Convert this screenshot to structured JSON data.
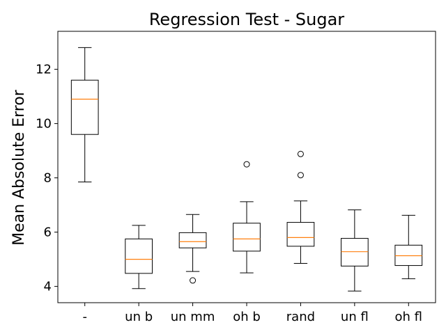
{
  "chart_data": {
    "type": "box",
    "title": "Regression Test - Sugar",
    "xlabel": "",
    "ylabel": "Mean Absolute Error",
    "ylim": [
      3.4,
      13.4
    ],
    "yticks": [
      4,
      6,
      8,
      10,
      12
    ],
    "grid": false,
    "categories": [
      "-",
      "un b",
      "un mm",
      "oh b",
      "rand",
      "un fl",
      "oh fl"
    ],
    "boxes": [
      {
        "category": "-",
        "whisker_low": 7.85,
        "q1": 9.6,
        "median": 10.9,
        "q3": 11.6,
        "whisker_high": 12.8,
        "outliers": []
      },
      {
        "category": "un b",
        "whisker_low": 3.92,
        "q1": 4.48,
        "median": 5.0,
        "q3": 5.75,
        "whisker_high": 6.25,
        "outliers": []
      },
      {
        "category": "un mm",
        "whisker_low": 4.55,
        "q1": 5.42,
        "median": 5.65,
        "q3": 5.98,
        "whisker_high": 6.65,
        "outliers": [
          4.22
        ]
      },
      {
        "category": "oh b",
        "whisker_low": 4.5,
        "q1": 5.3,
        "median": 5.75,
        "q3": 6.33,
        "whisker_high": 7.12,
        "outliers": [
          8.5
        ]
      },
      {
        "category": "rand",
        "whisker_low": 4.85,
        "q1": 5.48,
        "median": 5.8,
        "q3": 6.36,
        "whisker_high": 7.15,
        "outliers": [
          8.1,
          8.88
        ]
      },
      {
        "category": "un fl",
        "whisker_low": 3.83,
        "q1": 4.75,
        "median": 5.28,
        "q3": 5.77,
        "whisker_high": 6.82,
        "outliers": []
      },
      {
        "category": "oh fl",
        "whisker_low": 4.28,
        "q1": 4.77,
        "median": 5.13,
        "q3": 5.52,
        "whisker_high": 6.62,
        "outliers": []
      }
    ],
    "colors": {
      "box": "#000000",
      "median": "#ff7f0e",
      "outlier": "#000000"
    }
  }
}
